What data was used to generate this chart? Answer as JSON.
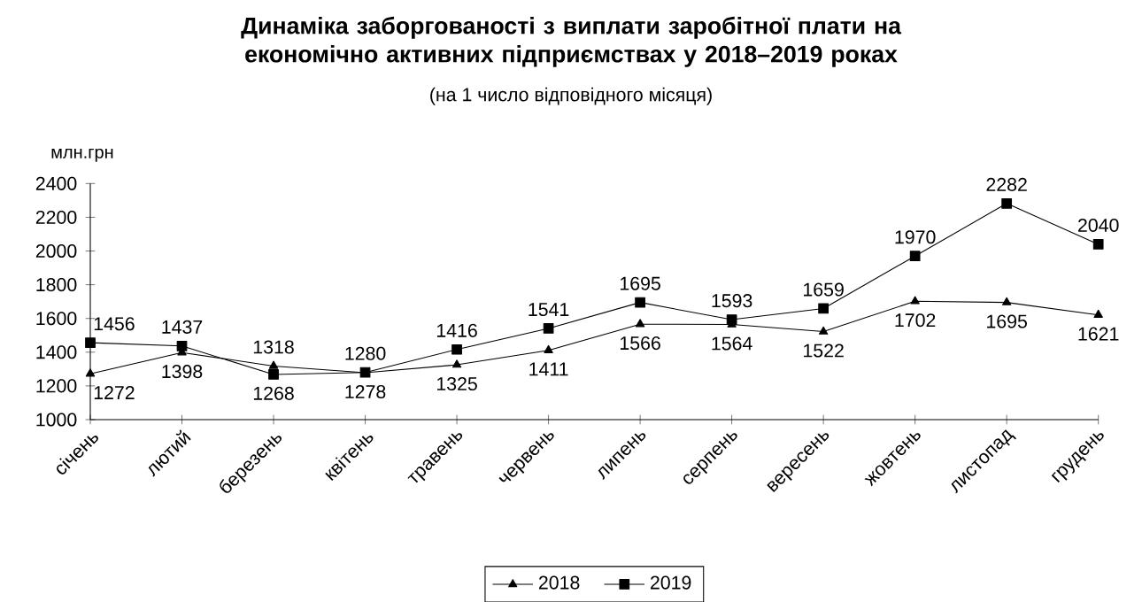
{
  "chart_data": {
    "type": "line",
    "title": "Динаміка заборгованості з виплати заробітної плати на економічно активних підприємствах у 2018–2019 роках",
    "subtitle": "(на 1 число відповідного місяця)",
    "ylabel": "млн.грн",
    "categories": [
      "січень",
      "лютий",
      "березень",
      "квітень",
      "травень",
      "червень",
      "липень",
      "серпень",
      "вересень",
      "жовтень",
      "листопад",
      "грудень"
    ],
    "series": [
      {
        "name": "2018",
        "color": "#000000",
        "marker": "triangle",
        "values": [
          1272,
          1398,
          1318,
          1278,
          1325,
          1411,
          1566,
          1564,
          1522,
          1702,
          1695,
          1621
        ]
      },
      {
        "name": "2019",
        "color": "#000000",
        "marker": "square",
        "values": [
          1456,
          1437,
          1268,
          1280,
          1416,
          1541,
          1695,
          1593,
          1659,
          1970,
          2282,
          2040
        ]
      }
    ],
    "ylim": [
      1000,
      2400
    ],
    "yticks": [
      1000,
      1200,
      1400,
      1600,
      1800,
      2000,
      2200,
      2400
    ],
    "grid": false,
    "legend": "bottom",
    "data_labels": true,
    "line_style": "solid"
  }
}
